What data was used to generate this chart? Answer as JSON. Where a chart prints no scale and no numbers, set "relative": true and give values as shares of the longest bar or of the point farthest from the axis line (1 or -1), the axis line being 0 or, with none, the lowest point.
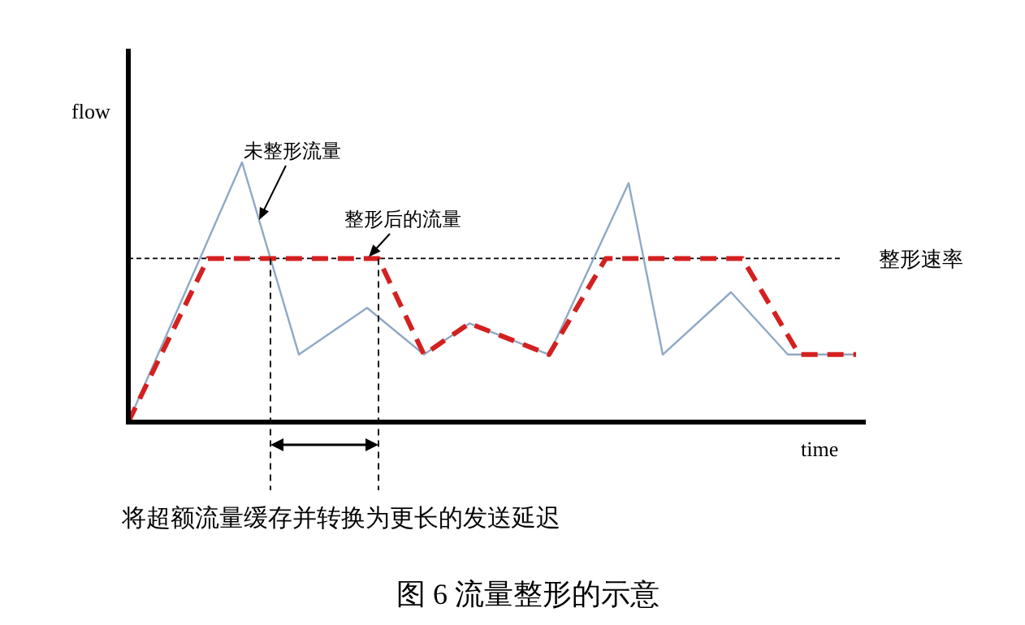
{
  "chart_data": {
    "type": "line",
    "relative": true,
    "title": "图 6 流量整形的示意",
    "xlabel": "time",
    "ylabel": "flow",
    "categories": [
      null,
      null,
      null,
      null,
      null,
      null,
      null,
      null,
      null,
      null,
      null,
      null,
      null,
      null,
      null,
      null,
      null,
      null,
      null,
      null,
      null,
      null,
      null,
      null,
      null,
      null,
      null,
      null,
      null,
      null,
      null,
      null,
      null,
      null,
      null,
      null,
      null,
      null,
      null,
      null,
      null,
      null,
      null,
      null,
      null,
      null,
      null,
      null,
      null,
      null,
      null,
      null,
      null,
      null,
      null,
      null,
      null,
      null,
      null,
      null,
      null,
      null,
      null,
      null,
      null
    ],
    "series": [
      {
        "name": "未整形流量",
        "color": "#8fa9c6",
        "line_style": "solid",
        "values": [
          0,
          null,
          null,
          null,
          null,
          null,
          null,
          null,
          null,
          null,
          1,
          null,
          null,
          null,
          null,
          0.26,
          null,
          null,
          null,
          null,
          null,
          0.44,
          null,
          null,
          null,
          null,
          0.26,
          null,
          null,
          null,
          0.38,
          null,
          null,
          null,
          null,
          null,
          null,
          0.26,
          null,
          null,
          null,
          null,
          null,
          null,
          0.92,
          null,
          null,
          0.26,
          null,
          null,
          null,
          null,
          null,
          0.5,
          null,
          null,
          null,
          null,
          0.26,
          null,
          null,
          null,
          null,
          null,
          0.26
        ]
      },
      {
        "name": "整形后的流量",
        "color": "#d42020",
        "line_style": "dashed",
        "values": [
          0,
          null,
          null,
          null,
          null,
          null,
          null,
          0.63,
          null,
          null,
          null,
          null,
          null,
          null,
          null,
          null,
          null,
          null,
          null,
          null,
          null,
          null,
          0.63,
          null,
          null,
          null,
          0.26,
          null,
          null,
          null,
          0.38,
          null,
          null,
          null,
          null,
          null,
          null,
          0.26,
          null,
          null,
          null,
          null,
          0.63,
          null,
          null,
          null,
          null,
          null,
          null,
          null,
          null,
          null,
          null,
          null,
          0.63,
          null,
          null,
          null,
          null,
          0.26,
          null,
          null,
          null,
          null,
          0.26
        ]
      }
    ],
    "ref_lines": [
      {
        "axis": "y",
        "value": 0.63,
        "label": "整形速率",
        "color": "#000000",
        "line_style": "dotted"
      }
    ],
    "annotations": [
      "将超额流量缓存并转换为更长的发送延迟"
    ]
  }
}
